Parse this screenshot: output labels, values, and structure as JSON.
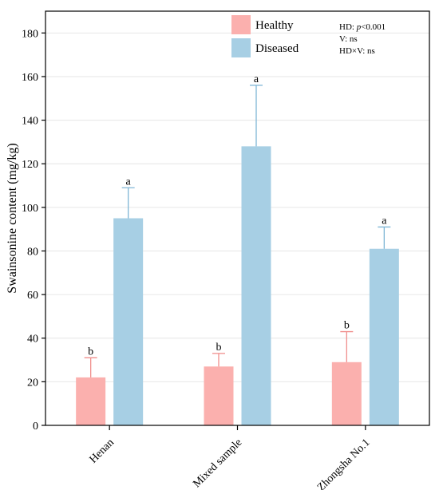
{
  "chart_data": {
    "type": "bar",
    "title": "",
    "xlabel": "",
    "ylabel": "Swainsonine content (mg/kg)",
    "ylim": [
      0,
      190
    ],
    "yticks": [
      0,
      20,
      40,
      60,
      80,
      100,
      120,
      140,
      160,
      180
    ],
    "grid": "horizontal",
    "legend_position": "top-center",
    "categories": [
      "Henan",
      "Mixed sample",
      "Zhongsha No.1"
    ],
    "series": [
      {
        "name": "Healthy",
        "color": "#fbb0ae",
        "error_color": "#f08e8c",
        "values": [
          22,
          27,
          29
        ],
        "errors": [
          9,
          6,
          14
        ],
        "significance": [
          "b",
          "b",
          "b"
        ]
      },
      {
        "name": "Diseased",
        "color": "#a7cfe4",
        "error_color": "#7fb6d6",
        "values": [
          95,
          128,
          81
        ],
        "errors": [
          14,
          28,
          10
        ],
        "significance": [
          "a",
          "a",
          "a"
        ]
      }
    ],
    "stats_annotation": {
      "line1_prefix": "HD: ",
      "line1_p": "p",
      "line1_suffix": "<0.001",
      "line2": "V: ns",
      "line3": "HD×V: ns"
    }
  }
}
